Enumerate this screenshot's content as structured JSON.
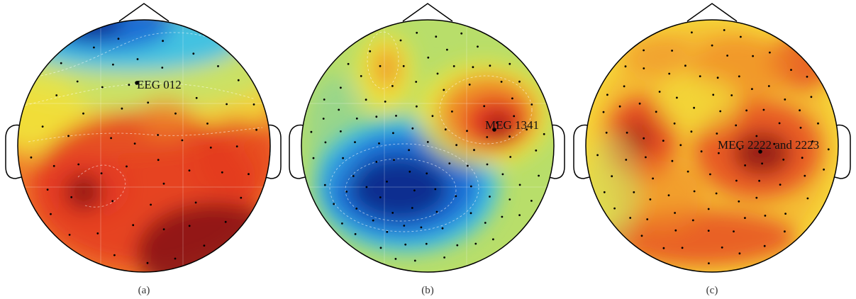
{
  "panels": [
    {
      "caption": "(a)",
      "annotation": "EEG 012",
      "map": "fronto-central-negative"
    },
    {
      "caption": "(b)",
      "annotation": "MEG 1341",
      "map": "dipolar"
    },
    {
      "caption": "(c)",
      "annotation": "MEG 2222 and 2223",
      "map": "diffuse-positive"
    }
  ],
  "colormap": {
    "negative_peak": "#0a2a8c",
    "negative": "#1f6fd6",
    "cyan": "#3cc0e8",
    "zero": "#c8e36a",
    "yellow": "#f2e23a",
    "orange": "#f08a28",
    "positive": "#e43a20",
    "positive_peak": "#8b1414"
  }
}
